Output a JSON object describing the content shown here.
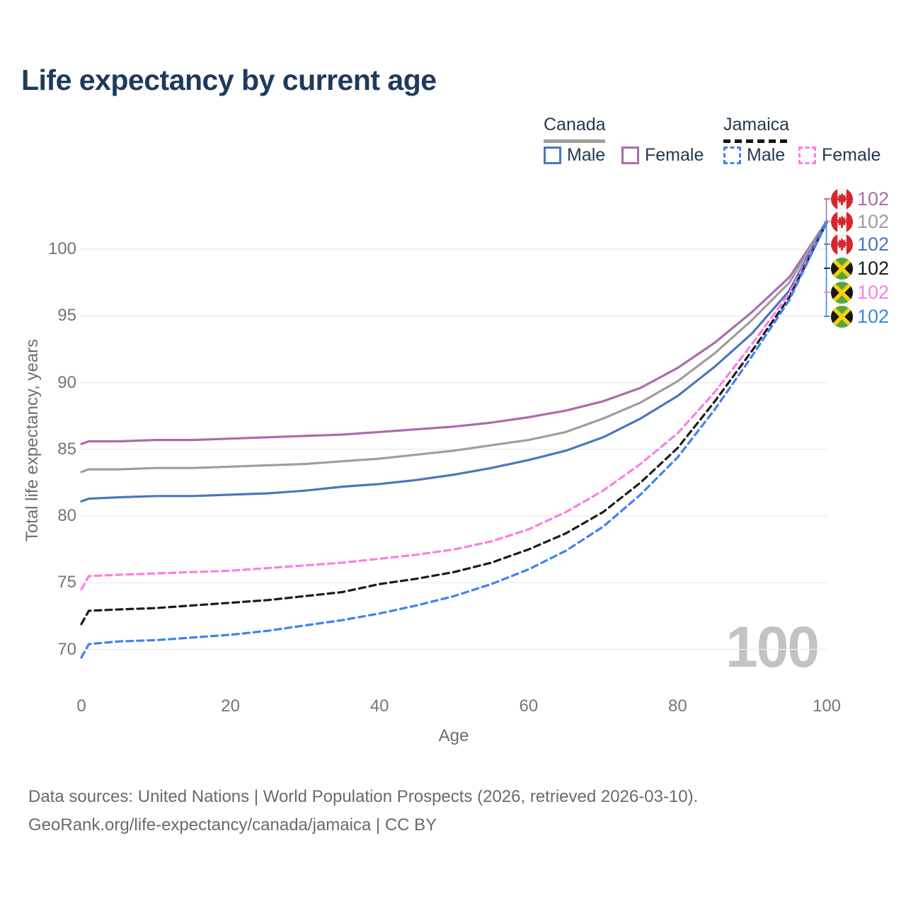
{
  "title": "Life expectancy by current age",
  "watermark": "100",
  "legend": {
    "groups": [
      {
        "label": "Canada",
        "line_style": "solid",
        "underline_color": "#9e9e9e",
        "items": [
          {
            "label": "Male",
            "color": "#4a77bd",
            "dashed": false
          },
          {
            "label": "Female",
            "color": "#ad6bad",
            "dashed": false
          }
        ]
      },
      {
        "label": "Jamaica",
        "line_style": "dashed",
        "underline_color": "#141414",
        "items": [
          {
            "label": "Male",
            "color": "#3f82f0",
            "dashed": true
          },
          {
            "label": "Female",
            "color": "#fc7ee3",
            "dashed": true
          }
        ]
      }
    ]
  },
  "callouts": [
    {
      "flag": "canada",
      "value": "102",
      "color": "#ad6bad"
    },
    {
      "flag": "canada",
      "value": "102",
      "color": "#9e9e9e"
    },
    {
      "flag": "canada",
      "value": "102",
      "color": "#4a77bd"
    },
    {
      "flag": "jamaica",
      "value": "102",
      "color": "#1c1c1c"
    },
    {
      "flag": "jamaica",
      "value": "102",
      "color": "#fc7ee3"
    },
    {
      "flag": "jamaica",
      "value": "102",
      "color": "#3f82f0"
    }
  ],
  "footer": {
    "line1": "Data sources: United Nations | World Population Prospects (2026, retrieved 2026-03-10).",
    "line2": "GeoRank.org/life-expectancy/canada/jamaica | CC BY"
  },
  "chart_data": {
    "type": "line",
    "title": "Life expectancy by current age",
    "xlabel": "Age",
    "ylabel": "Total life expectancy, years",
    "xlim": [
      0,
      100
    ],
    "ylim": [
      68,
      103
    ],
    "x_ticks": [
      0,
      20,
      40,
      60,
      80,
      100
    ],
    "y_ticks": [
      70,
      75,
      80,
      85,
      90,
      95,
      100
    ],
    "grid": "horizontal",
    "legend_position": "top-right",
    "x": [
      0,
      1,
      5,
      10,
      15,
      20,
      25,
      30,
      35,
      40,
      45,
      50,
      55,
      60,
      65,
      70,
      75,
      80,
      85,
      90,
      95,
      100
    ],
    "series": [
      {
        "name": "Canada Female",
        "country": "Canada",
        "sex": "female",
        "color": "#ad6bad",
        "dashed": false,
        "values": [
          85.4,
          85.6,
          85.6,
          85.7,
          85.7,
          85.8,
          85.9,
          86.0,
          86.1,
          86.3,
          86.5,
          86.7,
          87.0,
          87.4,
          87.9,
          88.6,
          89.6,
          91.1,
          93.0,
          95.3,
          97.9,
          102.1
        ]
      },
      {
        "name": "Canada Both sexes",
        "country": "Canada",
        "sex": "both",
        "color": "#9e9e9e",
        "dashed": false,
        "values": [
          83.3,
          83.5,
          83.5,
          83.6,
          83.6,
          83.7,
          83.8,
          83.9,
          84.1,
          84.3,
          84.6,
          84.9,
          85.3,
          85.7,
          86.3,
          87.3,
          88.5,
          90.1,
          92.2,
          94.7,
          97.5,
          102.1
        ]
      },
      {
        "name": "Canada Male",
        "country": "Canada",
        "sex": "male",
        "color": "#4a77bd",
        "dashed": false,
        "values": [
          81.1,
          81.3,
          81.4,
          81.5,
          81.5,
          81.6,
          81.7,
          81.9,
          82.2,
          82.4,
          82.7,
          83.1,
          83.6,
          84.2,
          84.9,
          85.9,
          87.3,
          89.0,
          91.2,
          93.7,
          96.9,
          102.1
        ]
      },
      {
        "name": "Jamaica Female",
        "country": "Jamaica",
        "sex": "female",
        "color": "#fc7ee3",
        "dashed": true,
        "values": [
          74.5,
          75.5,
          75.6,
          75.7,
          75.8,
          75.9,
          76.1,
          76.3,
          76.5,
          76.8,
          77.1,
          77.5,
          78.1,
          79.0,
          80.3,
          81.9,
          83.9,
          86.2,
          89.3,
          92.9,
          96.7,
          102.0
        ]
      },
      {
        "name": "Jamaica Both sexes",
        "country": "Jamaica",
        "sex": "both",
        "color": "#1c1c1c",
        "dashed": true,
        "values": [
          71.9,
          72.9,
          73.0,
          73.1,
          73.3,
          73.5,
          73.7,
          74.0,
          74.3,
          74.9,
          75.3,
          75.8,
          76.5,
          77.5,
          78.7,
          80.3,
          82.5,
          85.1,
          88.6,
          92.4,
          96.4,
          102.0
        ]
      },
      {
        "name": "Jamaica Male",
        "country": "Jamaica",
        "sex": "male",
        "color": "#3f82f0",
        "dashed": true,
        "values": [
          69.4,
          70.4,
          70.6,
          70.7,
          70.9,
          71.1,
          71.4,
          71.8,
          72.2,
          72.7,
          73.3,
          74.0,
          74.9,
          76.0,
          77.4,
          79.2,
          81.6,
          84.4,
          88.0,
          92.0,
          96.2,
          102.0
        ]
      }
    ]
  }
}
